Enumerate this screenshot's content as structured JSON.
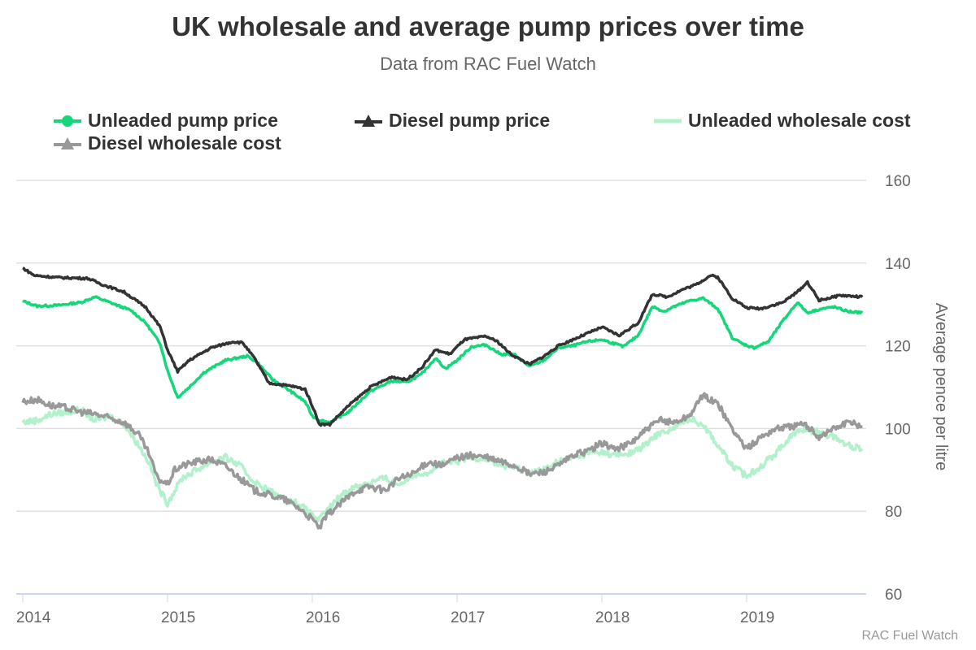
{
  "chart_data": {
    "type": "line",
    "title": "UK wholesale and average pump prices over time",
    "subtitle": "Data from RAC Fuel Watch",
    "xlabel": "",
    "ylabel": "Average pence per litre",
    "ylim": [
      60,
      160
    ],
    "xlim": [
      2013.98,
      2019.85
    ],
    "yticks": [
      "60",
      "80",
      "100",
      "120",
      "140",
      "160"
    ],
    "xticks": [
      "2014",
      "2015",
      "2016",
      "2017",
      "2018",
      "2019"
    ],
    "grid": true,
    "legend_position": "top",
    "credit": "RAC Fuel Watch",
    "series": [
      {
        "name": "Unleaded pump price",
        "color": "#14d77a",
        "symbol": "circle",
        "x": [
          2014.0,
          2014.1,
          2014.25,
          2014.4,
          2014.5,
          2014.6,
          2014.75,
          2014.85,
          2014.95,
          2015.0,
          2015.07,
          2015.15,
          2015.25,
          2015.4,
          2015.55,
          2015.62,
          2015.72,
          2015.85,
          2015.95,
          2016.0,
          2016.05,
          2016.12,
          2016.25,
          2016.4,
          2016.55,
          2016.65,
          2016.75,
          2016.85,
          2016.92,
          2017.0,
          2017.1,
          2017.2,
          2017.3,
          2017.4,
          2017.5,
          2017.6,
          2017.7,
          2017.8,
          2017.9,
          2018.0,
          2018.15,
          2018.25,
          2018.35,
          2018.43,
          2018.5,
          2018.6,
          2018.7,
          2018.8,
          2018.9,
          2018.97,
          2019.05,
          2019.15,
          2019.25,
          2019.35,
          2019.42,
          2019.5,
          2019.6,
          2019.7,
          2019.8
        ],
        "y": [
          130.8,
          129.6,
          129.8,
          130.5,
          131.8,
          130.5,
          128.5,
          125.5,
          120.5,
          114,
          107.5,
          110,
          113.5,
          116.5,
          117.5,
          116,
          112,
          109,
          106.5,
          103,
          102,
          101.5,
          104,
          109,
          111.5,
          111.2,
          113,
          117,
          114.5,
          116.5,
          119.8,
          120.2,
          118,
          117.8,
          115,
          116.5,
          119.5,
          120,
          121,
          121.5,
          119.8,
          122.5,
          129.5,
          128.3,
          129.5,
          130.8,
          131.5,
          129,
          122,
          120.5,
          119.5,
          121,
          126,
          130.5,
          128,
          128.8,
          129.4,
          128.3,
          128
        ]
      },
      {
        "name": "Diesel pump price",
        "color": "#333333",
        "symbol": "triangle",
        "x": [
          2014.0,
          2014.08,
          2014.25,
          2014.45,
          2014.55,
          2014.7,
          2014.85,
          2014.95,
          2015.0,
          2015.07,
          2015.15,
          2015.3,
          2015.45,
          2015.52,
          2015.6,
          2015.7,
          2015.85,
          2015.95,
          2016.0,
          2016.05,
          2016.12,
          2016.25,
          2016.4,
          2016.55,
          2016.65,
          2016.75,
          2016.85,
          2016.95,
          2017.05,
          2017.2,
          2017.28,
          2017.37,
          2017.5,
          2017.6,
          2017.7,
          2017.8,
          2017.9,
          2018.0,
          2018.12,
          2018.25,
          2018.35,
          2018.45,
          2018.55,
          2018.65,
          2018.75,
          2018.8,
          2018.9,
          2019.0,
          2019.1,
          2019.25,
          2019.35,
          2019.42,
          2019.5,
          2019.65,
          2019.8
        ],
        "y": [
          138.8,
          137,
          136.5,
          136.3,
          134.8,
          133,
          129.3,
          124.5,
          119,
          113.8,
          116.5,
          119.5,
          121,
          120.7,
          117,
          111,
          110.3,
          109.5,
          105.5,
          101,
          101,
          105.5,
          110,
          112.5,
          111.8,
          114.5,
          119,
          118,
          121.5,
          122.3,
          121,
          118,
          115.5,
          117.5,
          120,
          121.5,
          123,
          124.5,
          122.5,
          125.5,
          132.5,
          131.8,
          133.5,
          134.8,
          137,
          136.6,
          131.5,
          129.2,
          129,
          130.5,
          133,
          135.4,
          131,
          132.2,
          131.8
        ]
      },
      {
        "name": "Unleaded wholesale cost",
        "color": "#b3f0cc",
        "symbol": "line",
        "x": [
          2014.0,
          2014.1,
          2014.2,
          2014.3,
          2014.4,
          2014.5,
          2014.6,
          2014.7,
          2014.8,
          2014.87,
          2014.93,
          2015.0,
          2015.05,
          2015.1,
          2015.2,
          2015.3,
          2015.4,
          2015.5,
          2015.6,
          2015.7,
          2015.8,
          2015.9,
          2016.0,
          2016.05,
          2016.1,
          2016.2,
          2016.3,
          2016.4,
          2016.5,
          2016.6,
          2016.7,
          2016.8,
          2016.9,
          2017.0,
          2017.1,
          2017.2,
          2017.3,
          2017.4,
          2017.5,
          2017.6,
          2017.7,
          2017.8,
          2017.9,
          2018.0,
          2018.1,
          2018.2,
          2018.3,
          2018.4,
          2018.5,
          2018.6,
          2018.7,
          2018.8,
          2018.9,
          2019.0,
          2019.1,
          2019.2,
          2019.3,
          2019.4,
          2019.5,
          2019.6,
          2019.7,
          2019.8
        ],
        "y": [
          101.5,
          102,
          103.5,
          104,
          104.5,
          102,
          103,
          101,
          96,
          92,
          86,
          82,
          85,
          88,
          90,
          92,
          93,
          91,
          87,
          85,
          83,
          82,
          79,
          78,
          80,
          84,
          86,
          87,
          88,
          86.5,
          89,
          89.5,
          91.5,
          92,
          93,
          92.8,
          91,
          90.5,
          89.5,
          90,
          92,
          93,
          94,
          94.3,
          93.5,
          94,
          96,
          99,
          100,
          102.5,
          101,
          96,
          91,
          88.5,
          91,
          94,
          98,
          100,
          99,
          98,
          96,
          95
        ]
      },
      {
        "name": "Diesel wholesale cost",
        "color": "#999999",
        "symbol": "triangle",
        "x": [
          2014.0,
          2014.1,
          2014.2,
          2014.3,
          2014.4,
          2014.5,
          2014.6,
          2014.7,
          2014.8,
          2014.87,
          2014.93,
          2015.0,
          2015.05,
          2015.1,
          2015.2,
          2015.3,
          2015.4,
          2015.5,
          2015.6,
          2015.7,
          2015.8,
          2015.9,
          2016.0,
          2016.05,
          2016.1,
          2016.2,
          2016.3,
          2016.4,
          2016.5,
          2016.6,
          2016.7,
          2016.8,
          2016.9,
          2017.0,
          2017.1,
          2017.2,
          2017.3,
          2017.4,
          2017.5,
          2017.6,
          2017.7,
          2017.8,
          2017.9,
          2018.0,
          2018.1,
          2018.2,
          2018.3,
          2018.4,
          2018.5,
          2018.6,
          2018.7,
          2018.8,
          2018.9,
          2019.0,
          2019.1,
          2019.2,
          2019.3,
          2019.4,
          2019.5,
          2019.6,
          2019.7,
          2019.8
        ],
        "y": [
          106.5,
          107,
          105.5,
          105,
          104,
          103.5,
          102.5,
          101.5,
          98.5,
          94,
          88,
          86.5,
          90,
          91,
          92,
          92.5,
          91,
          88,
          85,
          84,
          83,
          81,
          78,
          76,
          79,
          82,
          85,
          86,
          85,
          88,
          89,
          92,
          91,
          93,
          93.5,
          93,
          92,
          91,
          89,
          89.5,
          91,
          93.5,
          94.5,
          96.5,
          95,
          96.5,
          99.5,
          102,
          101.5,
          103,
          108,
          106,
          100,
          95,
          98,
          100,
          100.5,
          101,
          98,
          100,
          101.5,
          100.5
        ]
      }
    ]
  }
}
